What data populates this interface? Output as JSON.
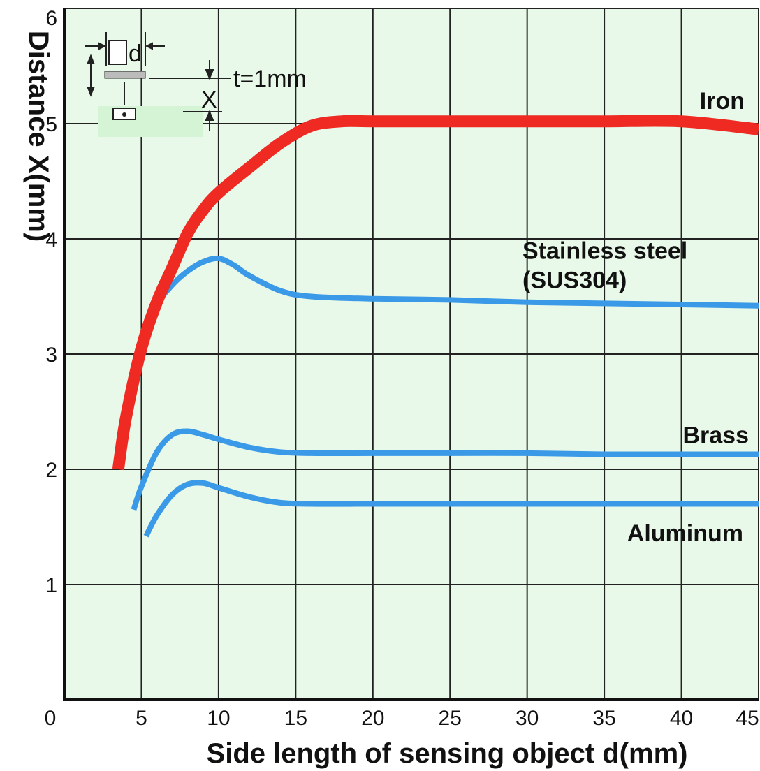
{
  "chart_data": {
    "type": "line",
    "xlabel": "Side length of sensing object d(mm)",
    "ylabel": "Distance X(mm)",
    "xlim": [
      0,
      45
    ],
    "ylim": [
      0,
      6
    ],
    "grid": true,
    "x_ticks": [
      "0",
      "5",
      "10",
      "15",
      "20",
      "25",
      "30",
      "35",
      "40",
      "45"
    ],
    "y_ticks": [
      "1",
      "2",
      "3",
      "4",
      "5",
      "6"
    ],
    "background": "#e9f9e9",
    "series": [
      {
        "name": "Iron",
        "color": "#ee2a22",
        "emphasis": "thick",
        "x": [
          3.5,
          4,
          5,
          6,
          7,
          8,
          9,
          10,
          12,
          14,
          16,
          18,
          20,
          25,
          30,
          35,
          40,
          45
        ],
        "y": [
          2.0,
          2.45,
          3.05,
          3.45,
          3.75,
          4.05,
          4.25,
          4.4,
          4.62,
          4.83,
          4.98,
          5.02,
          5.02,
          5.02,
          5.02,
          5.02,
          5.02,
          4.95
        ]
      },
      {
        "name": "Stainless steel",
        "name_line2": "(SUS304)",
        "color": "#3a9ae8",
        "x": [
          3.7,
          4,
          5,
          6,
          7,
          8,
          9,
          10,
          11,
          12,
          14,
          16,
          20,
          25,
          30,
          35,
          40,
          45
        ],
        "y": [
          2.0,
          2.35,
          3.05,
          3.42,
          3.6,
          3.72,
          3.8,
          3.83,
          3.77,
          3.68,
          3.55,
          3.5,
          3.48,
          3.47,
          3.45,
          3.44,
          3.43,
          3.42
        ]
      },
      {
        "name": "Brass",
        "color": "#3a9ae8",
        "x": [
          4.5,
          5,
          6,
          7,
          8,
          9,
          10,
          12,
          14,
          16,
          20,
          25,
          30,
          35,
          40,
          45
        ],
        "y": [
          1.65,
          1.85,
          2.15,
          2.3,
          2.33,
          2.3,
          2.26,
          2.19,
          2.15,
          2.14,
          2.14,
          2.14,
          2.14,
          2.13,
          2.13,
          2.13
        ]
      },
      {
        "name": "Aluminum",
        "color": "#3a9ae8",
        "x": [
          5.3,
          6,
          7,
          8,
          9,
          10,
          12,
          14,
          16,
          20,
          25,
          30,
          35,
          40,
          45
        ],
        "y": [
          1.42,
          1.6,
          1.78,
          1.87,
          1.88,
          1.84,
          1.76,
          1.71,
          1.7,
          1.7,
          1.7,
          1.7,
          1.7,
          1.7,
          1.7
        ]
      }
    ],
    "inset": {
      "thickness_label": "t=1mm",
      "d_label": "d",
      "x_label": "X"
    }
  }
}
